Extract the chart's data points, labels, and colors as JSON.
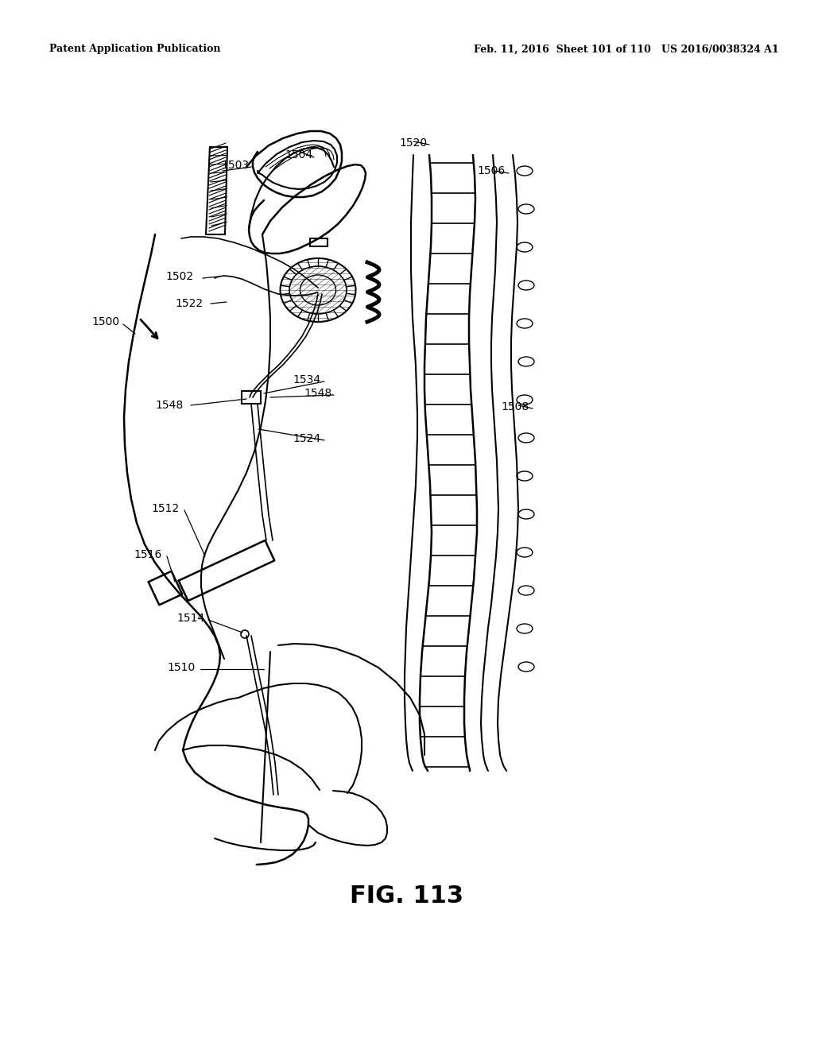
{
  "header_left": "Patent Application Publication",
  "header_right": "Feb. 11, 2016  Sheet 101 of 110   US 2016/0038324 A1",
  "figure_label": "FIG. 113",
  "background_color": "#ffffff",
  "line_color": "#000000"
}
